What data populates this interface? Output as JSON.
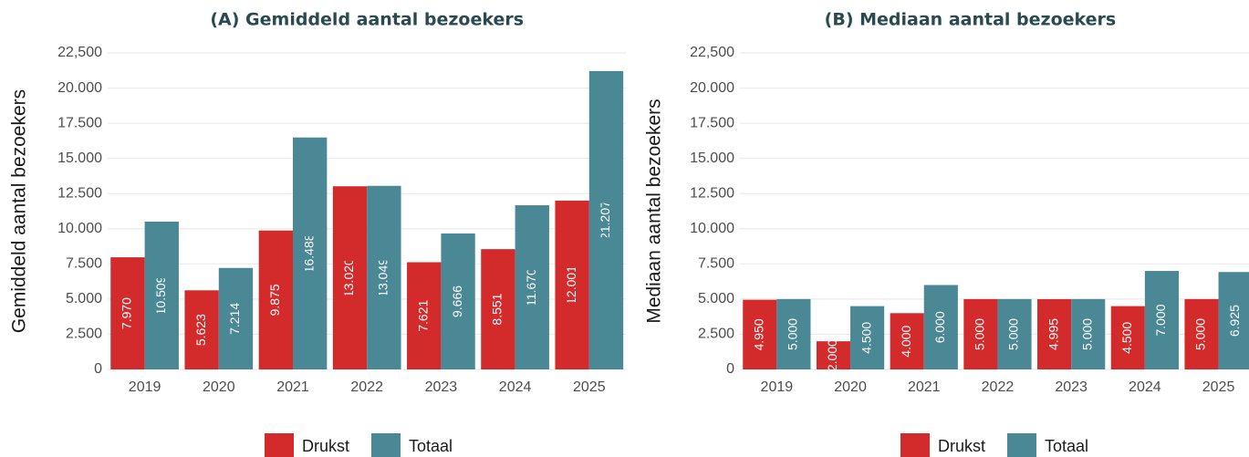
{
  "chart_data": [
    {
      "type": "bar",
      "title": "(A) Gemiddeld aantal bezoekers",
      "y_label": "Gemiddeld aantal bezoekers",
      "categories": [
        "2019",
        "2020",
        "2021",
        "2022",
        "2023",
        "2024",
        "2025"
      ],
      "series": [
        {
          "name": "Drukst",
          "color": "#d32b2b",
          "values": [
            7970,
            5623,
            9875,
            13020,
            7621,
            8551,
            12001
          ],
          "value_labels": [
            "7.970",
            "5.623",
            "9.875",
            "13.020",
            "7.621",
            "8.551",
            "12.001"
          ]
        },
        {
          "name": "Totaal",
          "color": "#4a8896",
          "values": [
            10509,
            7214,
            16488,
            13049,
            9666,
            11670,
            21207
          ],
          "value_labels": [
            "10.509",
            "7.214",
            "16.488",
            "13.049",
            "9.666",
            "11.670",
            "21.207"
          ]
        }
      ],
      "ylim": [
        0,
        22500
      ],
      "yticks": [
        0,
        {
          "value": 2500,
          "label": "2.500"
        },
        {
          "value": 5000,
          "label": "5.000"
        },
        {
          "value": 7500,
          "label": "7.500"
        },
        {
          "value": 10000,
          "label": "10.000"
        },
        {
          "value": 12500,
          "label": "12.500"
        },
        {
          "value": 15000,
          "label": "15.000"
        },
        {
          "value": 17500,
          "label": "17.500"
        },
        {
          "value": 20000,
          "label": "20.000"
        },
        {
          "value": 22500,
          "label": "22,500"
        }
      ],
      "grid": true,
      "legend": "bottom"
    },
    {
      "type": "bar",
      "title": "(B) Mediaan aantal bezoekers",
      "y_label": "Mediaan aantal bezoekers",
      "categories": [
        "2019",
        "2020",
        "2021",
        "2022",
        "2023",
        "2024",
        "2025"
      ],
      "series": [
        {
          "name": "Drukst",
          "color": "#d32b2b",
          "values": [
            4950,
            2000,
            4000,
            5000,
            4995,
            4500,
            5000
          ],
          "value_labels": [
            "4.950",
            "2.000",
            "4.000",
            "5.000",
            "4.995",
            "4.500",
            "5.000"
          ]
        },
        {
          "name": "Totaal",
          "color": "#4a8896",
          "values": [
            5000,
            4500,
            6000,
            5000,
            5000,
            7000,
            6925
          ],
          "value_labels": [
            "5.000",
            "4.500",
            "6.000",
            "5.000",
            "5.000",
            "7.000",
            "6.925"
          ]
        }
      ],
      "ylim": [
        0,
        22500
      ],
      "yticks": [
        0,
        {
          "value": 2500,
          "label": "2.500"
        },
        {
          "value": 5000,
          "label": "5.000"
        },
        {
          "value": 7500,
          "label": "7.500"
        },
        {
          "value": 10000,
          "label": "10.000"
        },
        {
          "value": 12500,
          "label": "12.500"
        },
        {
          "value": 15000,
          "label": "15.000"
        },
        {
          "value": 17500,
          "label": "17.500"
        },
        {
          "value": 20000,
          "label": "20.000"
        },
        {
          "value": 22500,
          "label": "22,500"
        }
      ],
      "grid": true,
      "legend": "bottom"
    }
  ]
}
